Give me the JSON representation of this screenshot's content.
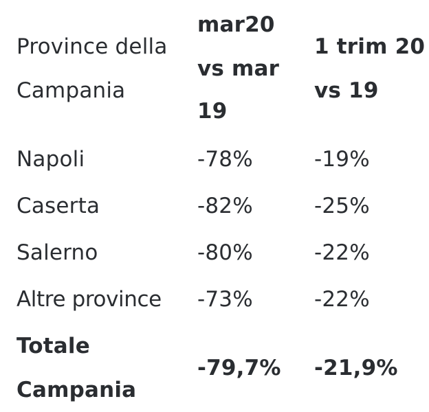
{
  "table": {
    "header": {
      "province_line1": "Province della",
      "province_line2": "Campania",
      "col2_line1": "mar20",
      "col2_line2": "vs mar",
      "col2_line3": "19",
      "col3_line1": "1 trim 20",
      "col3_line2": "vs 19"
    },
    "rows": [
      {
        "province": "Napoli",
        "mar": "-78%",
        "trim": "-19%"
      },
      {
        "province": "Caserta",
        "mar": "-82%",
        "trim": "-25%"
      },
      {
        "province": "Salerno",
        "mar": "-80%",
        "trim": "-22%"
      },
      {
        "province": "Altre province",
        "mar": "-73%",
        "trim": "-22%"
      }
    ],
    "total": {
      "label_line1": "Totale",
      "label_line2": "Campania",
      "mar": "-79,7%",
      "trim": "-21,9%"
    }
  }
}
